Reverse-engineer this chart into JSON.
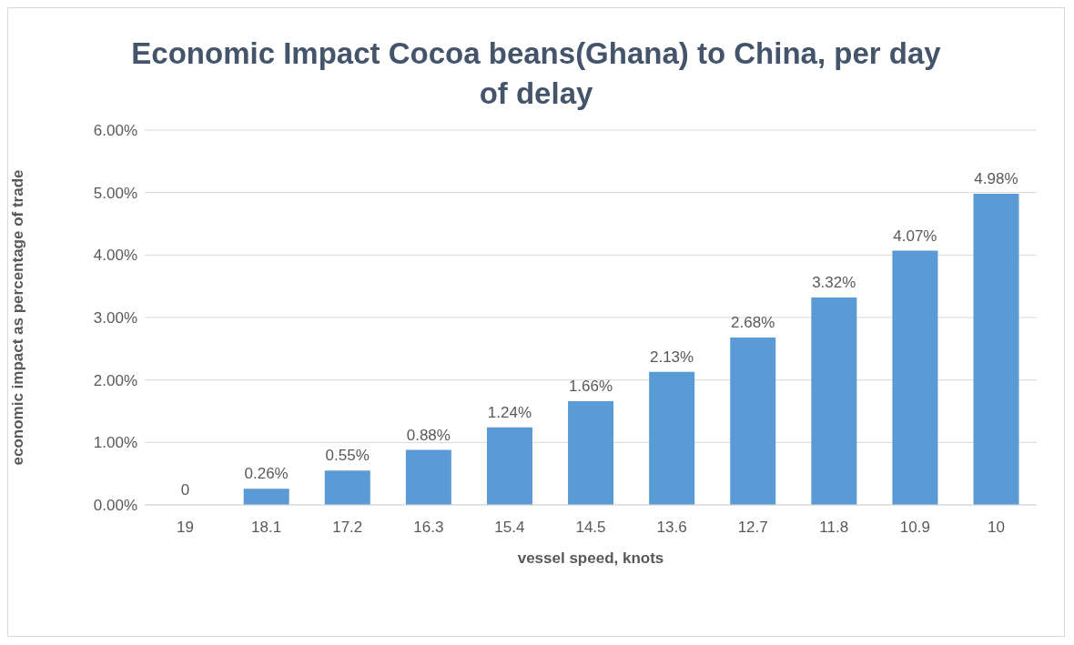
{
  "chart_data": {
    "type": "bar",
    "title": "Economic Impact Cocoa beans(Ghana) to China, per day of delay",
    "xlabel": "vessel speed, knots",
    "ylabel": "economic impact as percentage of trade",
    "categories": [
      "19",
      "18.1",
      "17.2",
      "16.3",
      "15.4",
      "14.5",
      "13.6",
      "12.7",
      "11.8",
      "10.9",
      "10"
    ],
    "values": [
      0,
      0.26,
      0.55,
      0.88,
      1.24,
      1.66,
      2.13,
      2.68,
      3.32,
      4.07,
      4.98
    ],
    "value_labels": [
      "0",
      "0.26%",
      "0.55%",
      "0.88%",
      "1.24%",
      "1.66%",
      "2.13%",
      "2.68%",
      "3.32%",
      "4.07%",
      "4.98%"
    ],
    "color": "#5b9bd5",
    "ylim": [
      0,
      6
    ],
    "yticks": [
      {
        "value": 0,
        "label": "0.00%"
      },
      {
        "value": 1,
        "label": "1.00%"
      },
      {
        "value": 2,
        "label": "2.00%"
      },
      {
        "value": 3,
        "label": "3.00%"
      },
      {
        "value": 4,
        "label": "4.00%"
      },
      {
        "value": 5,
        "label": "5.00%"
      },
      {
        "value": 6,
        "label": "6.00%"
      }
    ],
    "grid": "y",
    "legend": false
  }
}
